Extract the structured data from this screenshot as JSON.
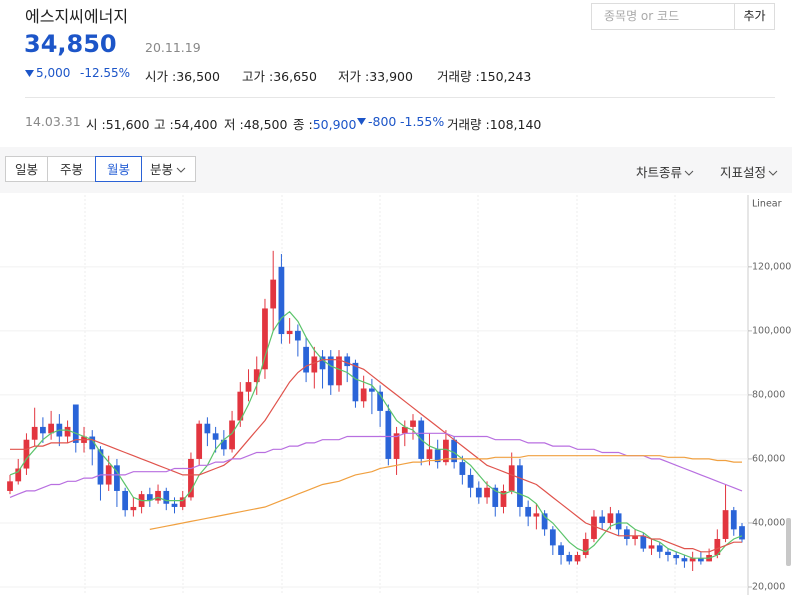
{
  "header": {
    "name": "에스지씨에너지",
    "price": "34,850",
    "date": "20.11.19",
    "change": "5,000",
    "change_rate": "-12.55%",
    "stats": [
      {
        "label": "시가 :",
        "value": "36,500"
      },
      {
        "label": "고가 :",
        "value": "36,650"
      },
      {
        "label": "저가 :",
        "value": "33,900"
      },
      {
        "label": "거래량 :",
        "value": "150,243"
      }
    ],
    "search_placeholder": "종목명 or 코드",
    "add_button": "추가"
  },
  "hover": {
    "date": "14.03.31",
    "items": [
      {
        "label": "시 :",
        "value": "51,600"
      },
      {
        "label": "고 :",
        "value": "54,400"
      },
      {
        "label": "저 :",
        "value": "48,500"
      },
      {
        "label": "종 :",
        "value": "50,900"
      }
    ],
    "change": "-800",
    "change_rate": "-1.55%",
    "volume_label": "거래량 :",
    "volume": "108,140"
  },
  "toolbar": {
    "periods": [
      "일봉",
      "주봉",
      "월봉",
      "분봉"
    ],
    "menus": [
      "차트종류",
      "지표설정"
    ]
  },
  "chart_data": {
    "type": "candlestick",
    "scale_label": "Linear",
    "ylim": [
      17500,
      141500
    ],
    "yticks": [
      {
        "value": 20000,
        "label": "20,000"
      },
      {
        "value": 40000,
        "label": "40,000"
      },
      {
        "value": 60000,
        "label": "60,000"
      },
      {
        "value": 80000,
        "label": "80,000"
      },
      {
        "value": 100000,
        "label": "100,000"
      },
      {
        "value": 120000,
        "label": "120,000"
      }
    ],
    "grid": true,
    "up_color": "#e2353f",
    "down_color": "#2a64d8",
    "open": [
      50000,
      53000,
      57000,
      66000,
      70000,
      68000,
      71000,
      67000,
      77000,
      65000,
      67000,
      63000,
      52000,
      58000,
      50000,
      44000,
      45000,
      49000,
      47000,
      50000,
      46000,
      45000,
      48000,
      60000,
      71000,
      68000,
      66000,
      63000,
      72000,
      81000,
      84000,
      88000,
      107000,
      120000,
      99000,
      100000,
      95000,
      87000,
      92000,
      92000,
      83000,
      92000,
      90000,
      78000,
      82000,
      81000,
      75000,
      60000,
      68000,
      70000,
      72000,
      60000,
      63000,
      59000,
      66000,
      59000,
      55000,
      51000,
      48000,
      51000,
      45000,
      50000,
      58000,
      45000,
      42000,
      43000,
      38000,
      33000,
      30000,
      28000,
      30000,
      35000,
      42000,
      40000,
      43000,
      38000,
      35000,
      36000,
      32000,
      33000,
      31000,
      30000,
      29000,
      28000,
      29000,
      28000,
      30000,
      35000,
      44000,
      39000
    ],
    "high": [
      55000,
      60000,
      68000,
      76000,
      73000,
      75000,
      74000,
      72000,
      77000,
      70000,
      69000,
      64000,
      61000,
      60000,
      51000,
      48000,
      50000,
      51000,
      52000,
      51000,
      48000,
      50000,
      62000,
      72000,
      73000,
      70000,
      69000,
      75000,
      84000,
      88000,
      92000,
      110000,
      125000,
      124000,
      104000,
      102000,
      98000,
      95000,
      94000,
      94000,
      94000,
      93000,
      91000,
      86000,
      85000,
      83000,
      77000,
      70000,
      72000,
      74000,
      73000,
      68000,
      66000,
      69000,
      67000,
      61000,
      57000,
      53000,
      53000,
      52000,
      52000,
      62000,
      60000,
      47000,
      46000,
      44000,
      39000,
      34000,
      31000,
      31000,
      37000,
      44000,
      44000,
      45000,
      44000,
      39000,
      38000,
      37000,
      35000,
      34000,
      32000,
      31000,
      30000,
      31000,
      31000,
      32000,
      38000,
      52000,
      45000,
      40000
    ],
    "low": [
      49000,
      52000,
      55000,
      64000,
      65000,
      66000,
      64000,
      65000,
      62000,
      62000,
      58000,
      47000,
      50000,
      45000,
      42000,
      42000,
      43000,
      45000,
      46000,
      44000,
      43000,
      44000,
      47000,
      58000,
      64000,
      62000,
      61000,
      62000,
      70000,
      78000,
      80000,
      85000,
      100000,
      96000,
      96000,
      92000,
      84000,
      82000,
      82000,
      80000,
      81000,
      84000,
      76000,
      76000,
      74000,
      70000,
      58000,
      55000,
      64000,
      66000,
      58000,
      58000,
      57000,
      58000,
      57000,
      52000,
      48000,
      46000,
      46000,
      42000,
      43000,
      49000,
      42000,
      39000,
      38000,
      36000,
      30000,
      27000,
      27000,
      27000,
      29000,
      34000,
      38000,
      38000,
      36000,
      33000,
      33000,
      31000,
      30000,
      29000,
      28000,
      27000,
      26000,
      25000,
      27000,
      28000,
      29000,
      34000,
      36000,
      33900
    ],
    "close": [
      53000,
      57000,
      66000,
      70000,
      68000,
      71000,
      67000,
      70000,
      65000,
      67000,
      63000,
      52000,
      58000,
      50000,
      44000,
      45000,
      49000,
      47000,
      50000,
      46000,
      45000,
      48000,
      60000,
      71000,
      68000,
      66000,
      63000,
      72000,
      81000,
      84000,
      88000,
      107000,
      116000,
      99000,
      100000,
      97000,
      87000,
      92000,
      88000,
      83000,
      92000,
      89000,
      78000,
      82000,
      81000,
      75000,
      60000,
      68000,
      70000,
      72000,
      60000,
      63000,
      59000,
      66000,
      59000,
      55000,
      51000,
      48000,
      51000,
      45000,
      50000,
      58000,
      45000,
      42000,
      43000,
      38000,
      33000,
      30000,
      28000,
      30000,
      35000,
      42000,
      40000,
      43000,
      38000,
      35000,
      36000,
      32000,
      33000,
      31000,
      30000,
      29000,
      28000,
      29000,
      28000,
      30000,
      35000,
      44000,
      38000,
      34850
    ],
    "series": [
      {
        "color": "#5cc46b",
        "values": [
          55000,
          56000,
          60000,
          63000,
          66000,
          68000,
          69000,
          69000,
          68000,
          67000,
          66000,
          62000,
          59000,
          56000,
          52000,
          48000,
          47000,
          47000,
          48000,
          47000,
          47000,
          47000,
          50000,
          55000,
          58000,
          63000,
          66000,
          68000,
          72000,
          77000,
          83000,
          92000,
          100000,
          104000,
          106000,
          103000,
          98000,
          94000,
          91000,
          89000,
          88000,
          87000,
          85000,
          84000,
          83000,
          80000,
          76000,
          72000,
          70000,
          69000,
          66000,
          64000,
          63000,
          63000,
          62000,
          60000,
          58000,
          55000,
          52000,
          50000,
          49000,
          50000,
          49000,
          48000,
          46000,
          42000,
          40000,
          37000,
          34000,
          32000,
          31000,
          33000,
          36000,
          39000,
          40000,
          40000,
          38000,
          37000,
          35000,
          34000,
          32000,
          31000,
          30000,
          29000,
          29000,
          29000,
          30000,
          33000,
          35000,
          36000
        ]
      },
      {
        "color": "#e0534c",
        "values": [
          63000,
          63000,
          63000,
          64000,
          64000,
          65000,
          65000,
          65000,
          66000,
          66000,
          66000,
          65000,
          64000,
          63000,
          62000,
          61000,
          60000,
          59000,
          58000,
          57000,
          56000,
          55000,
          55000,
          55000,
          56000,
          57000,
          58000,
          60000,
          63000,
          66000,
          69000,
          72000,
          76000,
          80000,
          84000,
          87000,
          89000,
          90000,
          91000,
          91000,
          91000,
          90000,
          89000,
          88000,
          86000,
          84000,
          82000,
          80000,
          78000,
          76000,
          74000,
          72000,
          70000,
          68000,
          66000,
          64000,
          62000,
          60000,
          58000,
          57000,
          56000,
          55000,
          54000,
          53000,
          52000,
          50000,
          48000,
          46000,
          44000,
          42000,
          40000,
          39000,
          38000,
          37000,
          36000,
          36000,
          36000,
          36000,
          35000,
          35000,
          34000,
          33000,
          32000,
          32000,
          31000,
          31000,
          32000,
          33000,
          34000,
          34000
        ]
      },
      {
        "color": "#b86fe0",
        "values": [
          48000,
          49000,
          50000,
          50000,
          51000,
          52000,
          52000,
          53000,
          53000,
          54000,
          54000,
          55000,
          55000,
          55000,
          55000,
          56000,
          56000,
          56000,
          56000,
          56000,
          57000,
          57000,
          57000,
          58000,
          58000,
          59000,
          59000,
          60000,
          60000,
          61000,
          62000,
          62000,
          63000,
          63000,
          64000,
          64000,
          65000,
          65000,
          66000,
          66000,
          66000,
          67000,
          67000,
          67000,
          67000,
          67000,
          67000,
          67000,
          68000,
          68000,
          68000,
          68000,
          68000,
          68000,
          67000,
          67000,
          67000,
          67000,
          67000,
          66000,
          66000,
          66000,
          66000,
          65000,
          65000,
          65000,
          64000,
          64000,
          64000,
          63000,
          63000,
          63000,
          62000,
          62000,
          62000,
          61000,
          61000,
          61000,
          60000,
          60000,
          59000,
          58000,
          57000,
          56000,
          55000,
          54000,
          53000,
          52000,
          51000,
          50000
        ]
      },
      {
        "color": "#f0a040",
        "values": [
          null,
          null,
          null,
          null,
          null,
          null,
          null,
          null,
          null,
          null,
          null,
          null,
          null,
          null,
          null,
          null,
          null,
          38000,
          38500,
          39000,
          39500,
          40000,
          40500,
          41000,
          41500,
          42000,
          42500,
          43000,
          43500,
          44000,
          44500,
          45000,
          46000,
          47000,
          48000,
          49000,
          50000,
          51000,
          52000,
          52500,
          53000,
          54000,
          55000,
          55500,
          56000,
          57000,
          57500,
          58000,
          58500,
          59000,
          59000,
          59500,
          59500,
          60000,
          60000,
          60000,
          60000,
          60000,
          60000,
          60500,
          60500,
          60500,
          60500,
          61000,
          61000,
          61000,
          61000,
          61000,
          61000,
          61000,
          61000,
          61000,
          61000,
          61000,
          61000,
          61000,
          61000,
          61000,
          61000,
          61000,
          60500,
          60500,
          60500,
          60000,
          60000,
          60000,
          59500,
          59500,
          59000,
          59000
        ]
      }
    ]
  }
}
